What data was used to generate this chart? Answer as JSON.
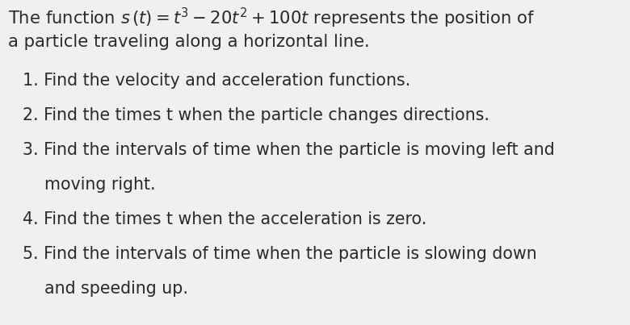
{
  "background_color": "#f0f0f0",
  "text_color": "#2a2a2a",
  "header_line1": "The function $s\\,(t) = t^3 - 20t^2 + 100t$ represents the position of",
  "header_line2": "a particle traveling along a horizontal line.",
  "items": [
    {
      "text": "1. Find the velocity and acceleration functions.",
      "indent": false
    },
    {
      "text": "2. Find the times t when the particle changes directions.",
      "indent": false
    },
    {
      "text": "3. Find the intervals of time when the particle is moving left and",
      "indent": false
    },
    {
      "text": "   moving right.",
      "indent": true
    },
    {
      "text": "4. Find the times t when the acceleration is zero.",
      "indent": false
    },
    {
      "text": "5. Find the intervals of time when the particle is slowing down",
      "indent": false
    },
    {
      "text": "   and speeding up.",
      "indent": true
    }
  ],
  "header_fontsize": 15.2,
  "item_fontsize": 14.8,
  "fig_width": 7.8,
  "fig_height": 4.03,
  "dpi": 100
}
